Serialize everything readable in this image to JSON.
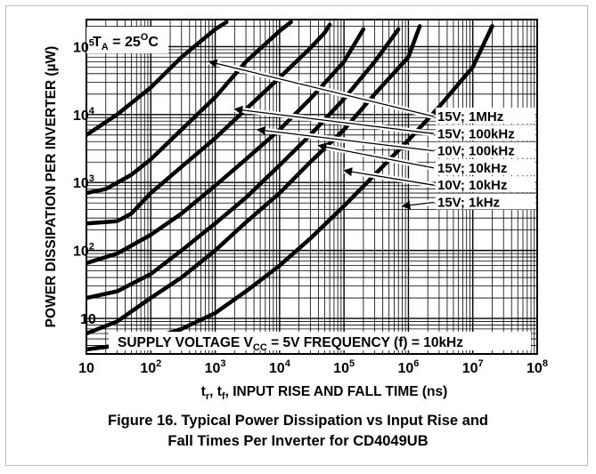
{
  "chart_data": {
    "type": "line",
    "xscale": "log",
    "yscale": "log",
    "xlim": [
      10,
      100000000
    ],
    "ylim": [
      3,
      250000
    ],
    "grid": true,
    "x_ticks": [
      {
        "value": 10,
        "base": "10",
        "exp": ""
      },
      {
        "value": 100,
        "base": "10",
        "exp": "2"
      },
      {
        "value": 1000,
        "base": "10",
        "exp": "3"
      },
      {
        "value": 10000,
        "base": "10",
        "exp": "4"
      },
      {
        "value": 100000,
        "base": "10",
        "exp": "5"
      },
      {
        "value": 1000000,
        "base": "10",
        "exp": "6"
      },
      {
        "value": 10000000,
        "base": "10",
        "exp": "7"
      },
      {
        "value": 100000000,
        "base": "10",
        "exp": "8"
      }
    ],
    "y_ticks": [
      {
        "value": 10,
        "base": "10",
        "exp": ""
      },
      {
        "value": 100,
        "base": "10",
        "exp": "2"
      },
      {
        "value": 1000,
        "base": "10",
        "exp": "3"
      },
      {
        "value": 10000,
        "base": "10",
        "exp": "4"
      },
      {
        "value": 100000,
        "base": "10",
        "exp": "5"
      }
    ],
    "xlabel": {
      "p1": "t",
      "s1": "r",
      "p2": ", t",
      "s2": "f",
      "p3": ", INPUT RISE AND FALL TIME (ns)"
    },
    "ylabel": "POWER DISSIPATION PER INVERTER (µW)",
    "temp_label": {
      "pre": "T",
      "sub": "A",
      "mid": " = 25",
      "sup": "O",
      "post": "C"
    },
    "bottom_label": "SUPPLY VOLTAGE V",
    "bottom_label_sub": "CC",
    "bottom_label_post": " = 5V FREQUENCY (f) = 10kHz",
    "series": [
      {
        "name": "15V; 1MHz",
        "x": [
          10,
          30,
          100,
          300,
          1000,
          1500
        ],
        "y": [
          5000,
          10000,
          25000,
          70000,
          180000,
          230000
        ]
      },
      {
        "name": "15V; 100kHz",
        "x": [
          10,
          20,
          50,
          100,
          300,
          1000,
          3000,
          10000,
          15000
        ],
        "y": [
          700,
          800,
          1300,
          2200,
          6000,
          18000,
          60000,
          170000,
          230000
        ]
      },
      {
        "name": "10V; 100kHz",
        "x": [
          10,
          30,
          50,
          100,
          300,
          1000,
          3000,
          10000,
          30000,
          50000,
          60000
        ],
        "y": [
          250,
          270,
          350,
          700,
          1700,
          4500,
          12000,
          35000,
          95000,
          160000,
          210000
        ]
      },
      {
        "name": "15V; 10kHz",
        "x": [
          10,
          30,
          100,
          300,
          1000,
          3000,
          10000,
          30000,
          100000,
          200000
        ],
        "y": [
          65,
          90,
          170,
          350,
          900,
          2200,
          6000,
          17000,
          60000,
          180000
        ]
      },
      {
        "name": "10V; 10kHz",
        "x": [
          10,
          30,
          100,
          300,
          1000,
          3000,
          10000,
          30000,
          100000,
          300000,
          700000
        ],
        "y": [
          20,
          25,
          45,
          100,
          250,
          600,
          1800,
          5000,
          17000,
          60000,
          180000
        ]
      },
      {
        "name": "15V; 1kHz",
        "x": [
          10,
          30,
          100,
          300,
          1000,
          3000,
          10000,
          30000,
          100000,
          300000,
          1000000,
          1500000
        ],
        "y": [
          6,
          9,
          20,
          40,
          100,
          260,
          700,
          2000,
          6000,
          20000,
          70000,
          200000
        ]
      },
      {
        "name": "5V; 10kHz",
        "x": [
          10,
          30,
          100,
          300,
          1000,
          3000,
          10000,
          30000,
          100000,
          300000,
          1000000,
          3000000,
          10000000,
          20000000
        ],
        "y": [
          3.5,
          4,
          5,
          7,
          12,
          25,
          60,
          150,
          450,
          1300,
          4200,
          13000,
          50000,
          200000
        ]
      }
    ],
    "annotations": [
      {
        "label": "15V; 1MHz",
        "target": [
          800,
          60000
        ]
      },
      {
        "label": "15V; 100kHz",
        "target": [
          2000,
          12000
        ]
      },
      {
        "label": "10V; 100kHz",
        "target": [
          4500,
          6000
        ]
      },
      {
        "label": "15V; 10kHz",
        "target": [
          40000,
          3500
        ]
      },
      {
        "label": "10V; 10kHz",
        "target": [
          100000,
          1500
        ]
      },
      {
        "label": "15V; 1kHz",
        "target": [
          800000,
          450
        ]
      }
    ]
  },
  "caption": {
    "line1": "Figure 16. Typical Power Dissipation vs Input Rise and",
    "line2": "Fall Times Per Inverter for CD4049UB"
  },
  "colors": {
    "curve": "#000000",
    "grid": "#000000",
    "background": "#ffffff"
  }
}
